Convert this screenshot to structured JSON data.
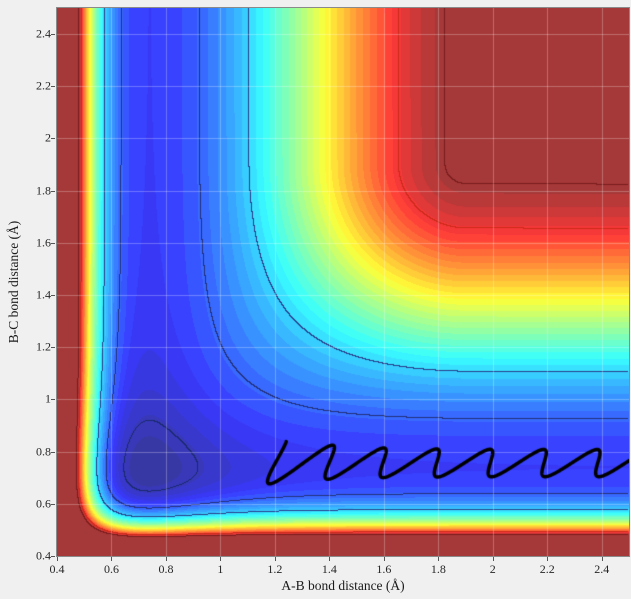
{
  "figure": {
    "background_color": "#f0f0f0",
    "plot_border_color": "#8a8a8a"
  },
  "chart_data": {
    "type": "heatmap",
    "subtype": "filled-contour potential energy surface with reactive trajectory overlay",
    "title": "",
    "xlabel": "A-B bond distance (Å)",
    "ylabel": "B-C bond distance (Å)",
    "x_range": [
      0.4,
      2.5
    ],
    "y_range": [
      0.4,
      2.5
    ],
    "x_ticks": [
      {
        "value": 0.4,
        "label": "0.4"
      },
      {
        "value": 0.6,
        "label": "0.6"
      },
      {
        "value": 0.8,
        "label": "0.8"
      },
      {
        "value": 1.0,
        "label": "1"
      },
      {
        "value": 1.2,
        "label": "1.2"
      },
      {
        "value": 1.4,
        "label": "1.4"
      },
      {
        "value": 1.6,
        "label": "1.6"
      },
      {
        "value": 1.8,
        "label": "1.8"
      },
      {
        "value": 2.0,
        "label": "2"
      },
      {
        "value": 2.2,
        "label": "2.2"
      },
      {
        "value": 2.4,
        "label": "2.4"
      }
    ],
    "y_ticks": [
      {
        "value": 0.4,
        "label": "0.4"
      },
      {
        "value": 0.6,
        "label": "0.6"
      },
      {
        "value": 0.8,
        "label": "0.8"
      },
      {
        "value": 1.0,
        "label": "1"
      },
      {
        "value": 1.2,
        "label": "1.2"
      },
      {
        "value": 1.4,
        "label": "1.4"
      },
      {
        "value": 1.6,
        "label": "1.6"
      },
      {
        "value": 1.8,
        "label": "1.8"
      },
      {
        "value": 2.0,
        "label": "2"
      },
      {
        "value": 2.2,
        "label": "2.2"
      },
      {
        "value": 2.4,
        "label": "2.4"
      }
    ],
    "colormap": "jet",
    "n_bands": 40,
    "face_alpha": 0.78,
    "grid": true,
    "grid_color": "rgba(255,255,255,0.28)",
    "potential": {
      "description": "Estimated model of the depicted surface: V(r1,r2)=Morse(r1)+Morse(r2)+E*c(r1)*c(r2), Morse(r)=D*(1-exp(-a*(r-re)))^2, c(r)=smoothstep((r-r0)/w), clamped at v_max. Minimum valley along r≈0.74 Å, repulsive walls below ≈0.5 Å, high-energy dissociation plateau at large r1 and r2.",
      "r_eq": 0.74,
      "morse_d": 1,
      "morse_a": 5,
      "coupling_e": 6,
      "coupling_r0": 0.85,
      "coupling_width": 1.05,
      "v_max": 8
    },
    "contour_lines": [
      {
        "level": 0.35,
        "color": "#1a2a6e"
      },
      {
        "level": 1.45,
        "color": "#23307a"
      },
      {
        "level": 2.6,
        "color": "#2a3f8c"
      },
      {
        "level": 7.15,
        "color": "#cc2a1a"
      },
      {
        "level": 7.9,
        "color": "#7a1d1d"
      }
    ],
    "trajectory": {
      "description": "Thick black classical trajectory oscillating in the B-C product channel: B-C distance vibrates about ≈0.75 Å with ≈0.05 Å amplitude while A-B distance increases from ≈1.1 to ≈2.55 Å, tracing small loops.",
      "x_start": 1.17,
      "x_travel": 1.38,
      "x_amp": 0.046,
      "x_phase": 2.1,
      "y_center": 0.756,
      "y_amp": 0.052,
      "y_phase": 0.5,
      "cycles": 7,
      "entry_boost": 0.8,
      "entry_decay": 7,
      "samples": 900,
      "color": "#000000",
      "line_width": 3.5
    }
  }
}
